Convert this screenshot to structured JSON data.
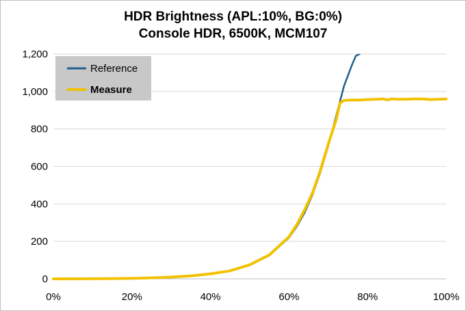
{
  "chart_data": {
    "type": "line",
    "title": "HDR Brightness (APL:10%, BG:0%)",
    "subtitle": "Console HDR, 6500K, MCM107",
    "xlabel": "",
    "ylabel": "",
    "xlim": [
      0,
      100
    ],
    "ylim": [
      0,
      1200
    ],
    "x_ticks": [
      0,
      20,
      40,
      60,
      80,
      100
    ],
    "x_tick_labels": [
      "0%",
      "20%",
      "40%",
      "60%",
      "80%",
      "100%"
    ],
    "y_ticks": [
      0,
      200,
      400,
      600,
      800,
      1000,
      1200
    ],
    "y_tick_labels": [
      "0",
      "200",
      "400",
      "600",
      "800",
      "1,000",
      "1,200"
    ],
    "grid": "horizontal",
    "legend_position": "top-left",
    "series": [
      {
        "name": "Reference",
        "color": "#1f5f8b",
        "x": [
          0,
          10,
          15,
          20,
          25,
          30,
          35,
          40,
          45,
          50,
          55,
          60,
          62,
          64,
          66,
          68,
          70,
          72,
          74,
          75,
          76,
          77,
          78
        ],
        "values": [
          0,
          0.6,
          1.4,
          2.8,
          5.3,
          9.2,
          16,
          27,
          44,
          73,
          125,
          220,
          280,
          355,
          450,
          570,
          710,
          870,
          1030,
          1085,
          1140,
          1190,
          1200
        ]
      },
      {
        "name": "Measure",
        "color": "#f2c200",
        "x": [
          0,
          10,
          15,
          20,
          25,
          30,
          35,
          40,
          45,
          50,
          55,
          60,
          62,
          64,
          66,
          68,
          70,
          72,
          73,
          74,
          76,
          78,
          80,
          82,
          84,
          85,
          86,
          88,
          90,
          92,
          94,
          96,
          98,
          100
        ],
        "values": [
          0,
          0.6,
          1.5,
          3,
          5.5,
          9.5,
          16,
          27,
          43,
          75,
          128,
          225,
          290,
          370,
          460,
          580,
          720,
          850,
          940,
          952,
          955,
          954,
          957,
          958,
          960,
          955,
          960,
          958,
          959,
          960,
          960,
          957,
          958,
          960
        ]
      }
    ]
  }
}
